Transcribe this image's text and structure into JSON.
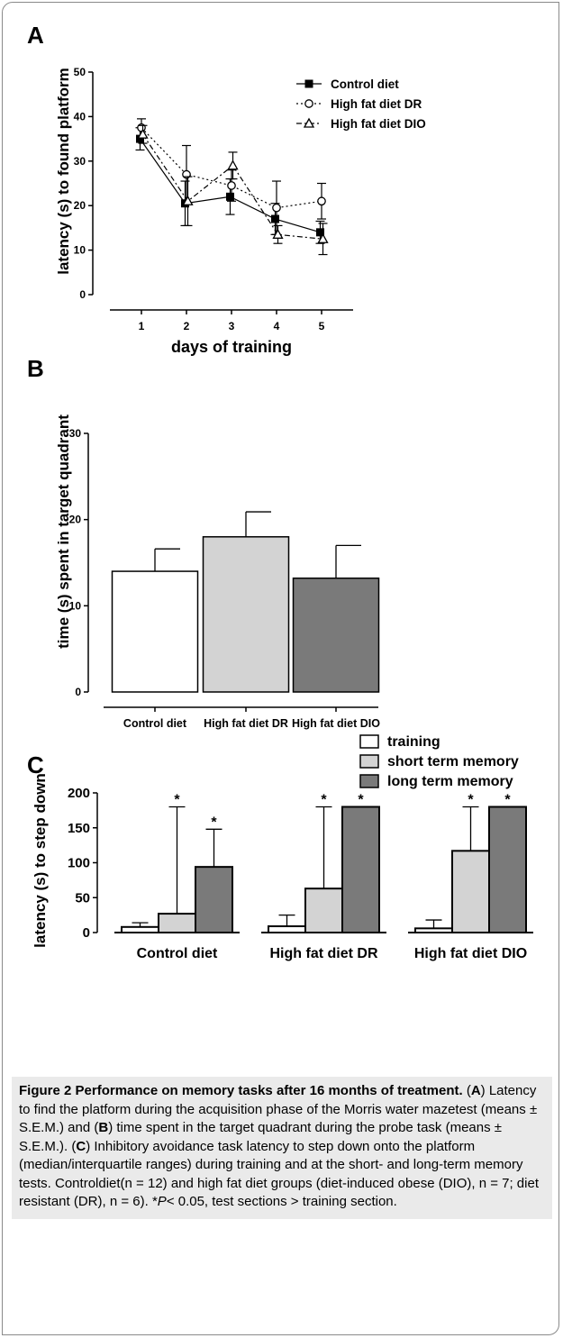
{
  "colors": {
    "axis": "#000000",
    "bar_control": "#ffffff",
    "bar_dr": "#d3d3d3",
    "bar_dio": "#7a7a7a",
    "caption_bg": "#eaeaea"
  },
  "panels": {
    "A": {
      "letter": "A"
    },
    "B": {
      "letter": "B"
    },
    "C": {
      "letter": "C"
    }
  },
  "chart_data": [
    {
      "panel": "A",
      "type": "line",
      "ylabel": "latency (s) to found platform",
      "xlabel": "days of training",
      "x": [
        1,
        2,
        3,
        4,
        5
      ],
      "ylim": [
        0,
        50
      ],
      "yticks": [
        "0",
        "10",
        "20",
        "30",
        "40",
        "50"
      ],
      "xticks": [
        "1",
        "2",
        "3",
        "4",
        "5"
      ],
      "legend_position": "top-right",
      "series": [
        {
          "name": "Control diet",
          "marker": "filled-square",
          "dash": "solid",
          "values": [
            35,
            20.5,
            22,
            17,
            14
          ],
          "err": [
            2.5,
            5,
            4,
            3.5,
            2.5
          ]
        },
        {
          "name": "High fat diet DR",
          "marker": "open-circle",
          "dash": "dotted",
          "values": [
            37.5,
            27,
            24.5,
            19.5,
            21
          ],
          "err": [
            2,
            6.5,
            3.5,
            6,
            4
          ]
        },
        {
          "name": "High fat diet DIO",
          "marker": "open-triangle",
          "dash": "dash-dot",
          "values": [
            36,
            21,
            29,
            13.5,
            12.5
          ],
          "err": [
            2,
            5.5,
            3,
            2,
            3.5
          ]
        }
      ]
    },
    {
      "panel": "B",
      "type": "bar",
      "ylabel": "time (s) spent in target quadrant",
      "ylim": [
        0,
        30
      ],
      "yticks": [
        "0",
        "10",
        "20",
        "30"
      ],
      "categories": [
        "Control diet",
        "High fat diet DR",
        "High fat diet DIO"
      ],
      "values": [
        14,
        18,
        13.2
      ],
      "err": [
        2.6,
        2.9,
        3.8
      ]
    },
    {
      "panel": "C",
      "type": "bar",
      "ylabel": "latency (s) to step down",
      "ylim": [
        0,
        200
      ],
      "yticks": [
        "0",
        "50",
        "100",
        "150",
        "200"
      ],
      "categories": [
        "Control diet",
        "High fat diet DR",
        "High fat diet DIO"
      ],
      "legend_position": "top-right",
      "series": [
        {
          "name": "training",
          "values": [
            8,
            9,
            6
          ],
          "upper": [
            14,
            25,
            18
          ],
          "sig": [
            "",
            "",
            ""
          ]
        },
        {
          "name": "short term memory",
          "values": [
            27,
            63,
            117
          ],
          "upper": [
            180,
            180,
            180
          ],
          "sig": [
            "*",
            "*",
            "*"
          ]
        },
        {
          "name": "long term memory",
          "values": [
            94,
            180,
            180
          ],
          "upper": [
            148,
            180,
            180
          ],
          "sig": [
            "*",
            "*",
            "*"
          ]
        }
      ]
    }
  ],
  "caption": {
    "title": "Figure 2 Performance on memory tasks after 16 months of treatment.",
    "p1a": " (",
    "A": "A",
    "p1b": ") Latency to find the platform during the acquisition phase of the Morris water mazetest (means ± S.E.M.) and (",
    "B": "B",
    "p1c": ") time spent in the target quadrant during the probe task (means ± S.E.M.). (",
    "C": "C",
    "p1d": ") Inhibitory avoidance task latency to step down onto the platform (median/interquartile ranges) during training and at the short- and long-term memory tests. Controldiet(n = 12) and high fat diet groups (diet-induced obese (DIO), n = 7; diet resistant (DR), n = 6). *",
    "P": "P",
    "p1e": "< 0.05, test sections > training section."
  }
}
